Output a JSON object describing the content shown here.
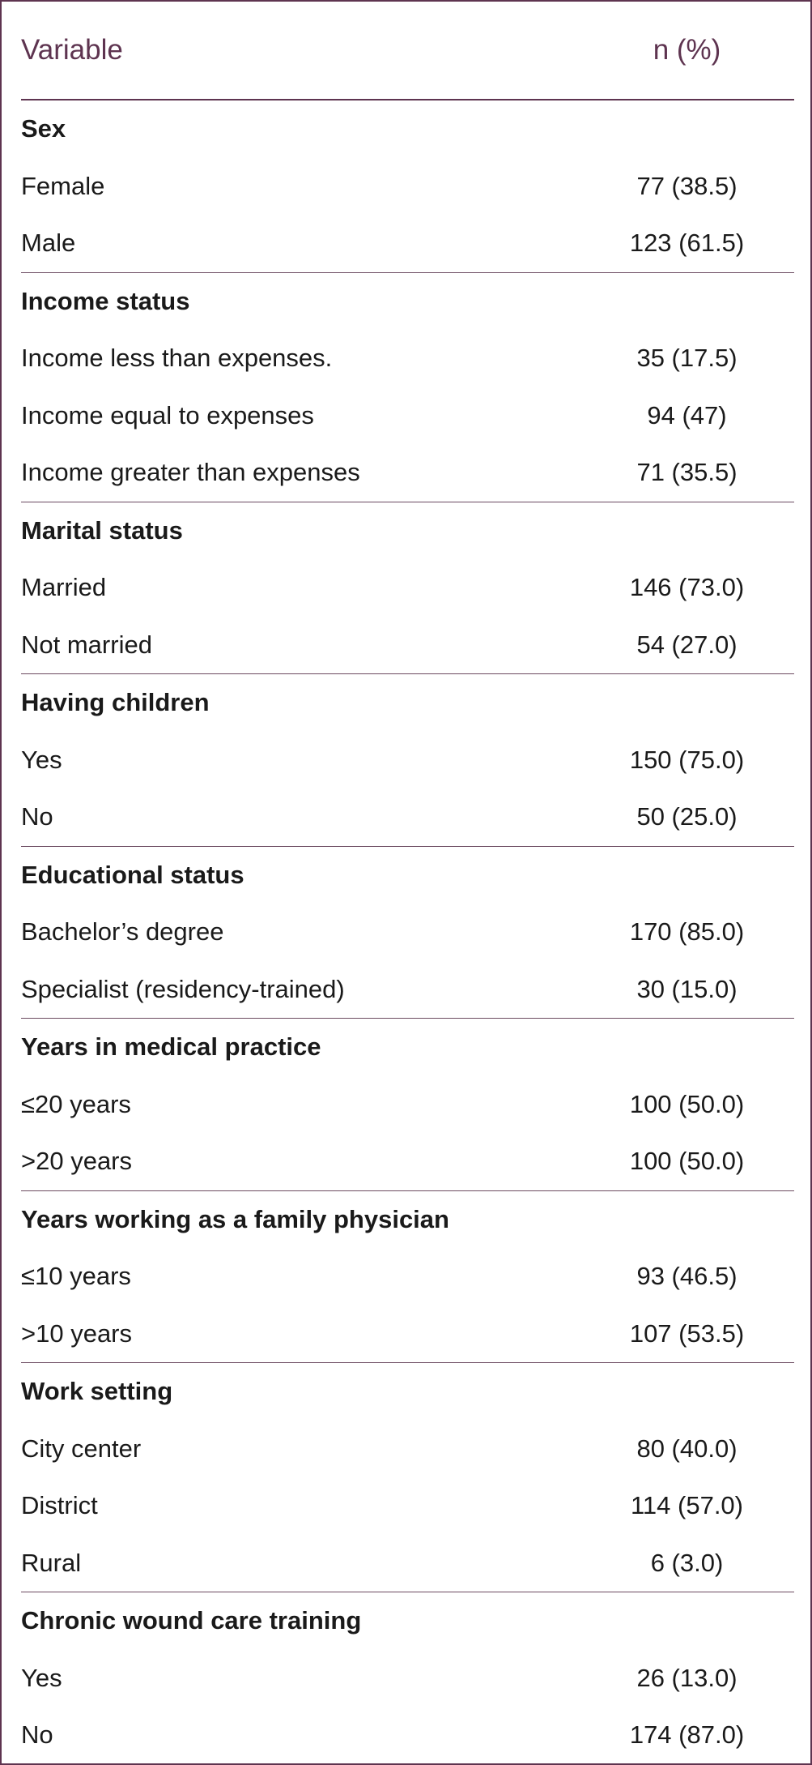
{
  "header": {
    "variable": "Variable",
    "value": "n (%)"
  },
  "groups": [
    {
      "title": "Sex",
      "rows": [
        {
          "label": "Female",
          "value": "77 (38.5)"
        },
        {
          "label": "Male",
          "value": "123 (61.5)"
        }
      ]
    },
    {
      "title": "Income status",
      "rows": [
        {
          "label": "Income less than expenses.",
          "value": "35 (17.5)"
        },
        {
          "label": "Income equal to expenses",
          "value": "94 (47)"
        },
        {
          "label": "Income greater than expenses",
          "value": "71 (35.5)"
        }
      ]
    },
    {
      "title": "Marital status",
      "rows": [
        {
          "label": "Married",
          "value": "146 (73.0)"
        },
        {
          "label": "Not married",
          "value": "54 (27.0)"
        }
      ]
    },
    {
      "title": "Having children",
      "rows": [
        {
          "label": "Yes",
          "value": "150 (75.0)"
        },
        {
          "label": "No",
          "value": "50 (25.0)"
        }
      ]
    },
    {
      "title": "Educational status",
      "rows": [
        {
          "label": "Bachelor’s degree",
          "value": "170 (85.0)"
        },
        {
          "label": "Specialist (residency-trained)",
          "value": "30 (15.0)"
        }
      ]
    },
    {
      "title": "Years in medical practice",
      "rows": [
        {
          "label": "≤20 years",
          "value": "100 (50.0)"
        },
        {
          "label": ">20 years",
          "value": "100 (50.0)"
        }
      ]
    },
    {
      "title": "Years working as a family physician",
      "rows": [
        {
          "label": "≤10 years",
          "value": "93 (46.5)"
        },
        {
          "label": ">10 years",
          "value": "107 (53.5)"
        }
      ]
    },
    {
      "title": "Work setting",
      "rows": [
        {
          "label": "City center",
          "value": "80 (40.0)"
        },
        {
          "label": "District",
          "value": "114 (57.0)"
        },
        {
          "label": "Rural",
          "value": "6 (3.0)"
        }
      ]
    },
    {
      "title": "Chronic wound care training",
      "rows": [
        {
          "label": "Yes",
          "value": "26 (13.0)"
        },
        {
          "label": "No",
          "value": "174 (87.0)"
        }
      ]
    }
  ]
}
